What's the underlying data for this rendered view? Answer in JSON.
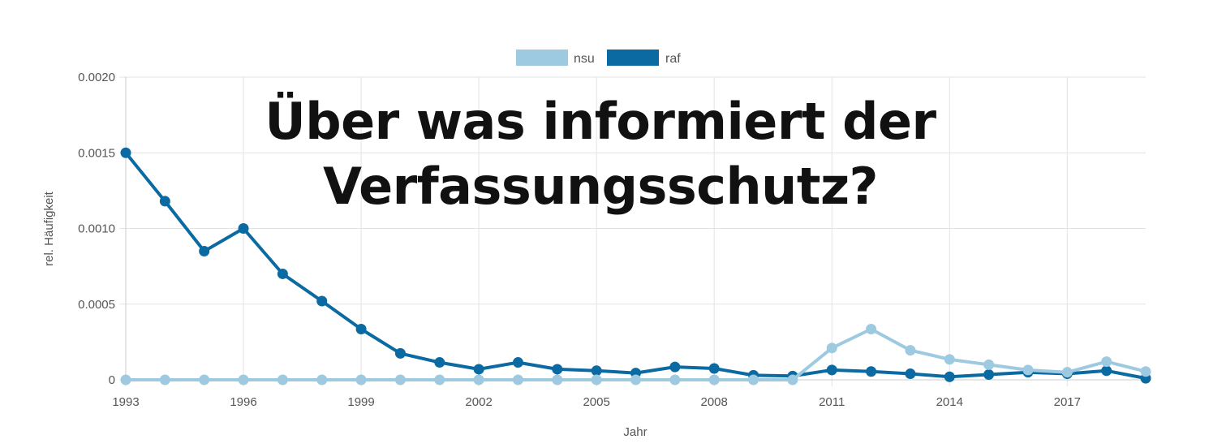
{
  "overlay": {
    "line1": "Über was informiert der",
    "line2": "Verfassungsschutz?"
  },
  "chart_data": {
    "type": "line",
    "title": "",
    "xlabel": "Jahr",
    "ylabel": "rel. Häufigkeit",
    "xlim": [
      1993,
      2019
    ],
    "ylim": [
      0,
      0.002
    ],
    "x_ticks": [
      1993,
      1996,
      1999,
      2002,
      2005,
      2008,
      2011,
      2014,
      2017
    ],
    "y_ticks": [
      "0",
      "0.0005",
      "0.0010",
      "0.0015",
      "0.0020"
    ],
    "y_tick_values": [
      0,
      0.0005,
      0.001,
      0.0015,
      0.002
    ],
    "grid": true,
    "legend_position": "top-center",
    "x": [
      1993,
      1994,
      1995,
      1996,
      1997,
      1998,
      1999,
      2000,
      2001,
      2002,
      2003,
      2004,
      2005,
      2006,
      2007,
      2008,
      2009,
      2010,
      2011,
      2012,
      2013,
      2014,
      2015,
      2016,
      2017,
      2018,
      2019
    ],
    "series": [
      {
        "name": "nsu",
        "color": "#9ecae1",
        "values": [
          0,
          0,
          0,
          0,
          0,
          0,
          0,
          0,
          0,
          0,
          0,
          0,
          0,
          0,
          0,
          0,
          0,
          0,
          0.00021,
          0.000335,
          0.000195,
          0.000135,
          0.0001,
          6.5e-05,
          5e-05,
          0.00012,
          5.5e-05
        ]
      },
      {
        "name": "raf",
        "color": "#0a6aa1",
        "values": [
          0.0015,
          0.00118,
          0.00085,
          0.001,
          0.0007,
          0.00052,
          0.000335,
          0.000175,
          0.000115,
          7e-05,
          0.000115,
          7e-05,
          6e-05,
          4.5e-05,
          8.5e-05,
          7.5e-05,
          3e-05,
          2.5e-05,
          6.5e-05,
          5.5e-05,
          4e-05,
          2e-05,
          3.5e-05,
          5e-05,
          4e-05,
          6e-05,
          1e-05
        ]
      }
    ]
  }
}
